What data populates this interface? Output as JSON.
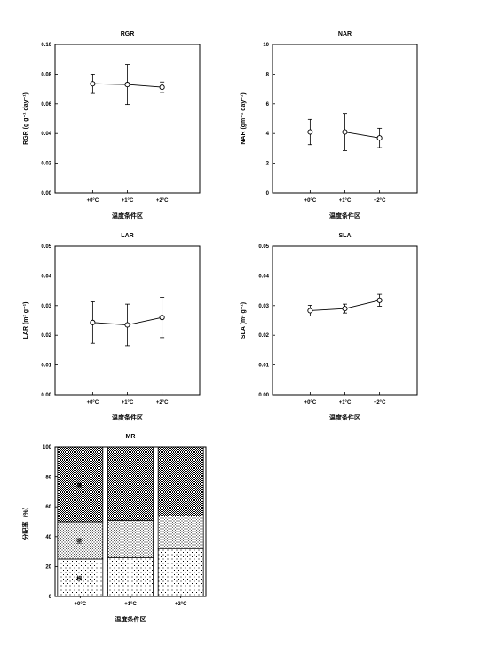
{
  "chart_data": [
    {
      "type": "line",
      "title": "RGR",
      "xlabel": "温度条件区",
      "ylabel": "RGR (g g⁻¹ day⁻¹)",
      "categories": [
        "+0°C",
        "+1°C",
        "+2°C"
      ],
      "values": [
        0.0735,
        0.073,
        0.0712
      ],
      "errors": [
        0.0065,
        0.0135,
        0.0035
      ],
      "ylim": [
        0,
        0.1
      ],
      "yticks": [
        "0.00",
        "0.02",
        "0.04",
        "0.06",
        "0.08",
        "0.10"
      ]
    },
    {
      "type": "line",
      "title": "NAR",
      "xlabel": "温度条件区",
      "ylabel": "NAR (gm⁻² day⁻¹)",
      "categories": [
        "+0°C",
        "+1°C",
        "+2°C"
      ],
      "values": [
        4.1,
        4.1,
        3.7
      ],
      "errors": [
        0.85,
        1.25,
        0.65
      ],
      "ylim": [
        0,
        10
      ],
      "yticks": [
        "0",
        "2",
        "4",
        "6",
        "8",
        "10"
      ]
    },
    {
      "type": "line",
      "title": "LAR",
      "xlabel": "温度条件区",
      "ylabel": "LAR (m² g⁻¹)",
      "categories": [
        "+0°C",
        "+1°C",
        "+2°C"
      ],
      "values": [
        0.0243,
        0.0235,
        0.026
      ],
      "errors": [
        0.007,
        0.007,
        0.0068
      ],
      "ylim": [
        0,
        0.05
      ],
      "yticks": [
        "0.00",
        "0.01",
        "0.02",
        "0.03",
        "0.04",
        "0.05"
      ]
    },
    {
      "type": "line",
      "title": "SLA",
      "xlabel": "温度条件区",
      "ylabel": "SLA (m² g⁻¹)",
      "categories": [
        "+0°C",
        "+1°C",
        "+2°C"
      ],
      "values": [
        0.0283,
        0.029,
        0.0318
      ],
      "errors": [
        0.0018,
        0.0015,
        0.002
      ],
      "ylim": [
        0,
        0.05
      ],
      "yticks": [
        "0.00",
        "0.01",
        "0.02",
        "0.03",
        "0.04",
        "0.05"
      ]
    },
    {
      "type": "bar",
      "stacked": true,
      "title": "MR",
      "xlabel": "温度条件区",
      "ylabel": "分配率（%）",
      "categories": [
        "+0°C",
        "+1°C",
        "+2°C"
      ],
      "series": [
        {
          "name": "根",
          "values": [
            25,
            26,
            32
          ]
        },
        {
          "name": "茎",
          "values": [
            25,
            25,
            22
          ]
        },
        {
          "name": "葉",
          "values": [
            50,
            49,
            46
          ]
        }
      ],
      "ylim": [
        0,
        100
      ],
      "yticks": [
        "0",
        "20",
        "40",
        "60",
        "80",
        "100"
      ]
    }
  ]
}
